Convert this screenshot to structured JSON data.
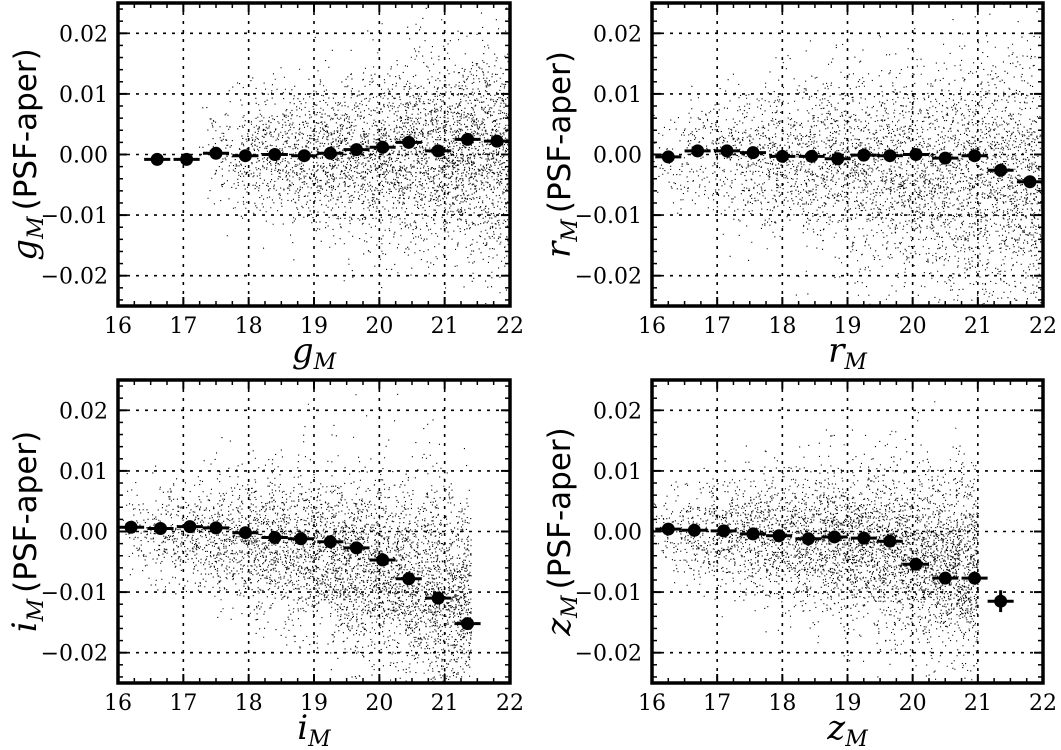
{
  "chart_data": [
    {
      "type": "scatter",
      "xlabel": {
        "sym": "g",
        "sub": "M"
      },
      "ylabel": {
        "sym": "g",
        "sub": "M",
        "text": "(PSF-aper)"
      },
      "xlim": [
        16,
        22
      ],
      "ylim": [
        -0.025,
        0.025
      ],
      "xticks": [
        "16",
        "17",
        "18",
        "19",
        "20",
        "21",
        "22"
      ],
      "yticks": [
        "0.02",
        "0.01",
        "0.00",
        "−0.01",
        "−0.02"
      ],
      "grid": true,
      "points": {
        "x": [
          16.6,
          17.05,
          17.5,
          17.95,
          18.4,
          18.85,
          19.25,
          19.65,
          20.05,
          20.45,
          20.9,
          21.35,
          21.8
        ],
        "y": [
          -0.0008,
          -0.0008,
          0.0002,
          -0.0002,
          0.0,
          -0.0002,
          0.0002,
          0.0008,
          0.0012,
          0.002,
          0.0006,
          0.0025,
          0.0022
        ],
        "yerr": [
          0.0003,
          0.0003,
          0.0003,
          0.0003,
          0.0003,
          0.0003,
          0.0003,
          0.0003,
          0.0003,
          0.0004,
          0.0004,
          0.0005,
          0.0005
        ],
        "xerr": 0.2
      },
      "cloud": {
        "start": 17.2,
        "end": 22,
        "spread": [
          0.006,
          0.016
        ],
        "skew": 0.0,
        "trend": 0.0,
        "density": 1.0
      }
    },
    {
      "type": "scatter",
      "xlabel": {
        "sym": "r",
        "sub": "M"
      },
      "ylabel": {
        "sym": "r",
        "sub": "M",
        "text": "(PSF-aper)"
      },
      "xlim": [
        16,
        22
      ],
      "ylim": [
        -0.025,
        0.025
      ],
      "xticks": [
        "16",
        "17",
        "18",
        "19",
        "20",
        "21",
        "22"
      ],
      "yticks": [
        "0.02",
        "0.01",
        "0.00",
        "−0.01",
        "−0.02"
      ],
      "grid": true,
      "points": {
        "x": [
          16.25,
          16.7,
          17.15,
          17.55,
          18.0,
          18.45,
          18.85,
          19.25,
          19.65,
          20.05,
          20.5,
          20.95,
          21.35,
          21.8
        ],
        "y": [
          -0.0004,
          0.0006,
          0.0006,
          0.0003,
          -0.0003,
          -0.0003,
          -0.0007,
          -0.0001,
          -0.0002,
          0.0,
          -0.0006,
          -0.0002,
          -0.0026,
          -0.0045
        ],
        "yerr": [
          0.0003,
          0.0003,
          0.0003,
          0.0003,
          0.0003,
          0.0003,
          0.0003,
          0.0003,
          0.0003,
          0.0003,
          0.0003,
          0.0004,
          0.0005,
          0.0006
        ],
        "xerr": 0.2
      },
      "cloud": {
        "start": 16.0,
        "end": 22,
        "spread": [
          0.007,
          0.02
        ],
        "skew": -0.003,
        "trend": -0.0006,
        "density": 1.1
      }
    },
    {
      "type": "scatter",
      "xlabel": {
        "sym": "i",
        "sub": "M"
      },
      "ylabel": {
        "sym": "i",
        "sub": "M",
        "text": "(PSF-aper)"
      },
      "xlim": [
        16,
        22
      ],
      "ylim": [
        -0.025,
        0.025
      ],
      "xticks": [
        "16",
        "17",
        "18",
        "19",
        "20",
        "21",
        "22"
      ],
      "yticks": [
        "0.02",
        "0.01",
        "0.00",
        "−0.01",
        "−0.02"
      ],
      "grid": true,
      "points": {
        "x": [
          16.2,
          16.65,
          17.1,
          17.5,
          17.95,
          18.4,
          18.8,
          19.25,
          19.65,
          20.05,
          20.45,
          20.9,
          21.35
        ],
        "y": [
          0.0007,
          0.0005,
          0.0008,
          0.0006,
          -0.0002,
          -0.001,
          -0.0012,
          -0.0017,
          -0.0027,
          -0.0047,
          -0.0078,
          -0.011,
          -0.0152
        ],
        "yerr": [
          0.0003,
          0.0003,
          0.0003,
          0.0003,
          0.0003,
          0.0003,
          0.0003,
          0.0003,
          0.0004,
          0.0004,
          0.0005,
          0.0006,
          0.0007
        ],
        "xerr": 0.2
      },
      "cloud": {
        "start": 16.0,
        "end": 21.4,
        "spread": [
          0.006,
          0.018
        ],
        "skew": -0.004,
        "trend": -0.0018,
        "density": 1.2
      }
    },
    {
      "type": "scatter",
      "xlabel": {
        "sym": "z",
        "sub": "M"
      },
      "ylabel": {
        "sym": "z",
        "sub": "M",
        "text": "(PSF-aper)"
      },
      "xlim": [
        16,
        22
      ],
      "ylim": [
        -0.025,
        0.025
      ],
      "xticks": [
        "16",
        "17",
        "18",
        "19",
        "20",
        "21",
        "22"
      ],
      "yticks": [
        "0.02",
        "0.01",
        "0.00",
        "−0.01",
        "−0.02"
      ],
      "grid": true,
      "points": {
        "x": [
          16.25,
          16.65,
          17.1,
          17.55,
          17.95,
          18.4,
          18.8,
          19.25,
          19.65,
          20.05,
          20.5,
          20.95,
          21.35
        ],
        "y": [
          0.0004,
          0.0002,
          0.0001,
          -0.0004,
          -0.0007,
          -0.0012,
          -0.0009,
          -0.0011,
          -0.0016,
          -0.0054,
          -0.0077,
          -0.0077,
          -0.0115
        ],
        "yerr": [
          0.0003,
          0.0003,
          0.0003,
          0.0003,
          0.0003,
          0.0003,
          0.0003,
          0.0003,
          0.0004,
          0.0005,
          0.0006,
          0.0007,
          0.0018
        ],
        "xerr": 0.2
      },
      "cloud": {
        "start": 16.0,
        "end": 21.0,
        "spread": [
          0.006,
          0.017
        ],
        "skew": -0.002,
        "trend": -0.0012,
        "density": 1.15
      }
    }
  ]
}
